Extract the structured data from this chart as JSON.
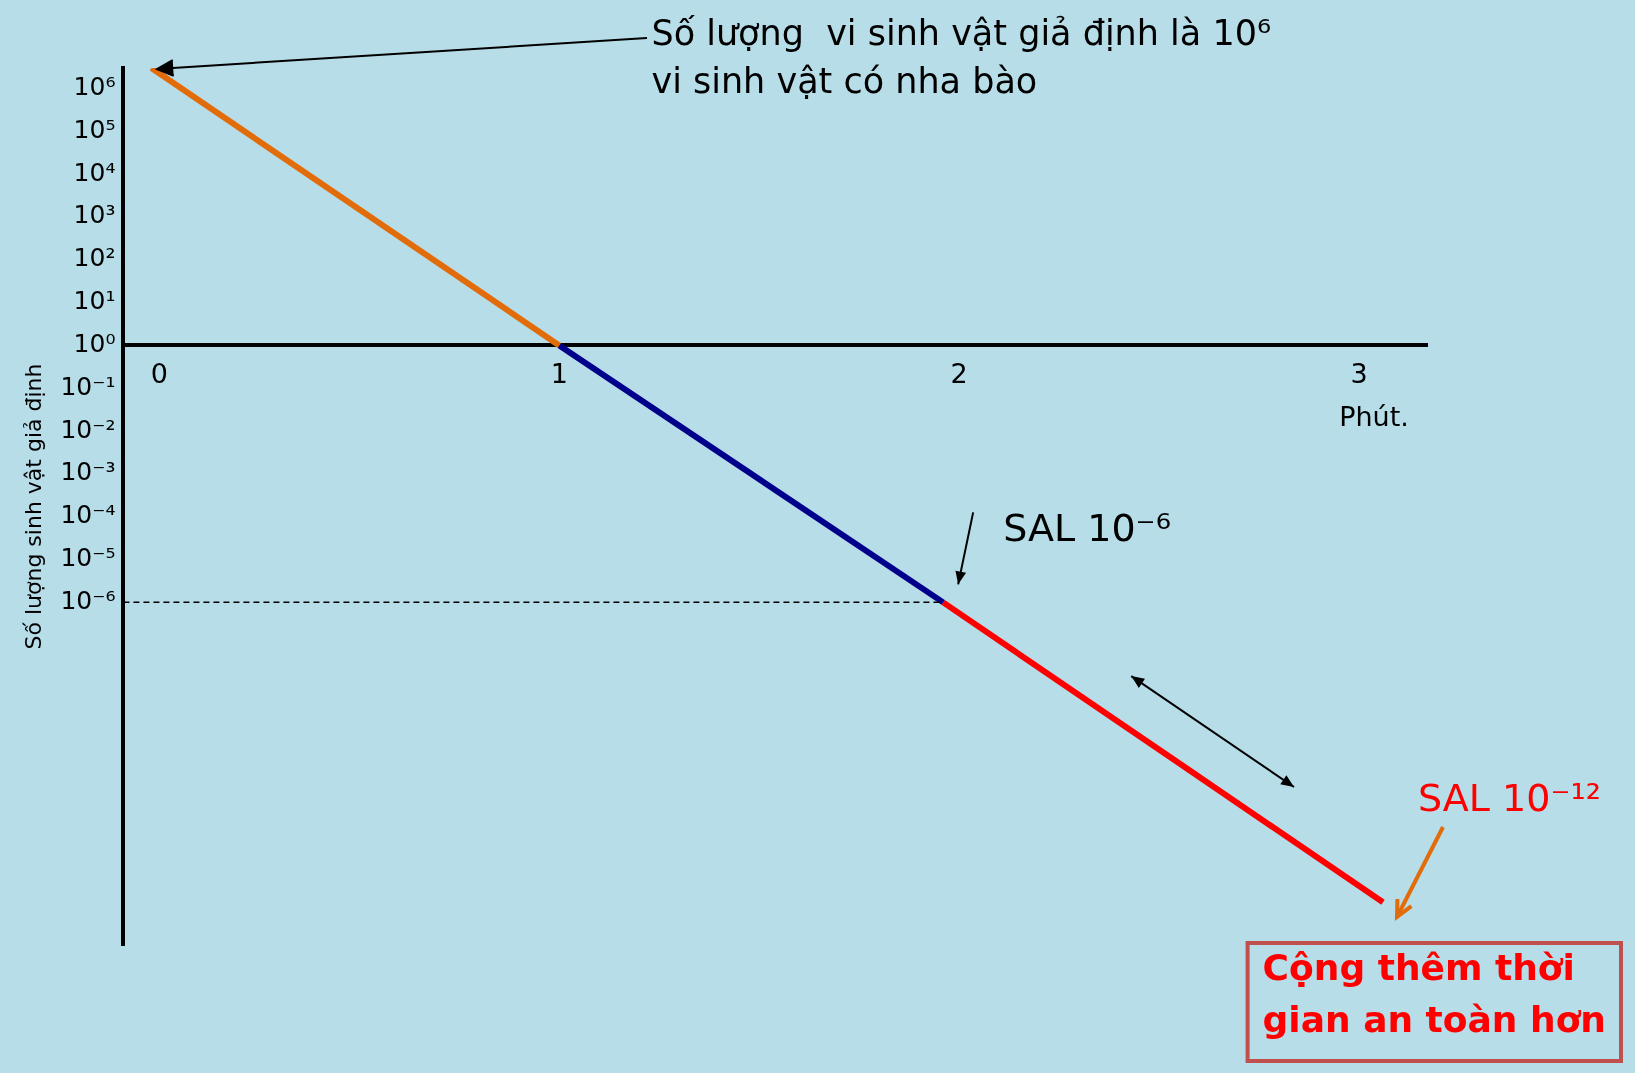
{
  "chart_data": {
    "type": "line",
    "ylabel": "Số lượng sinh vật giả định",
    "xlabel": "Phút.",
    "log": "y",
    "grid": false,
    "legend": false,
    "marker": "none",
    "line_style": "solid",
    "xlim": [
      -0.09,
      3.17
    ],
    "xticks": [
      0,
      1,
      2,
      3
    ],
    "ylim": [
      1e-14,
      3000000.0
    ],
    "yticks": [
      {
        "value": 1000000.0,
        "label": "10⁶"
      },
      {
        "value": 100000.0,
        "label": "10⁵"
      },
      {
        "value": 10000.0,
        "label": "10⁴"
      },
      {
        "value": 1000.0,
        "label": "10³"
      },
      {
        "value": 100.0,
        "label": "10²"
      },
      {
        "value": 10.0,
        "label": "10¹"
      },
      {
        "value": 1,
        "label": "10⁰"
      },
      {
        "value": 0.1,
        "label": "10⁻¹"
      },
      {
        "value": 0.01,
        "label": "10⁻²"
      },
      {
        "value": 0.001,
        "label": "10⁻³"
      },
      {
        "value": 0.0001,
        "label": "10⁻⁴"
      },
      {
        "value": 1e-05,
        "label": "10⁻⁵"
      },
      {
        "value": 1e-06,
        "label": "10⁻⁶"
      }
    ],
    "series": [
      {
        "color": "#e36c0a",
        "x": [
          -0.02,
          1
        ],
        "values": [
          3000000.0,
          1
        ]
      },
      {
        "color": "#00008b",
        "x": [
          1,
          1.96
        ],
        "values": [
          1,
          1e-06
        ]
      },
      {
        "color": "#ff0000",
        "x": [
          1.96,
          3.06
        ],
        "values": [
          1e-06,
          1e-13
        ]
      }
    ],
    "ref_lines": [
      {
        "axis": "y",
        "value": 1e-06,
        "color": "#000000",
        "line_style": "dashed"
      }
    ],
    "annotations": [
      {
        "text": "Số lượng  vi sinh vật giả định là 10⁶\nvi sinh vật có nha bào",
        "x": -0.02,
        "y": 3000000.0
      },
      {
        "text": "SAL 10⁻⁶",
        "x": 1.96,
        "y": 1e-06
      },
      {
        "text": "SAL 10⁻¹²",
        "x": 3.06,
        "y": 1e-13
      },
      "Cộng thêm thời\ngian an toàn hơn"
    ]
  }
}
